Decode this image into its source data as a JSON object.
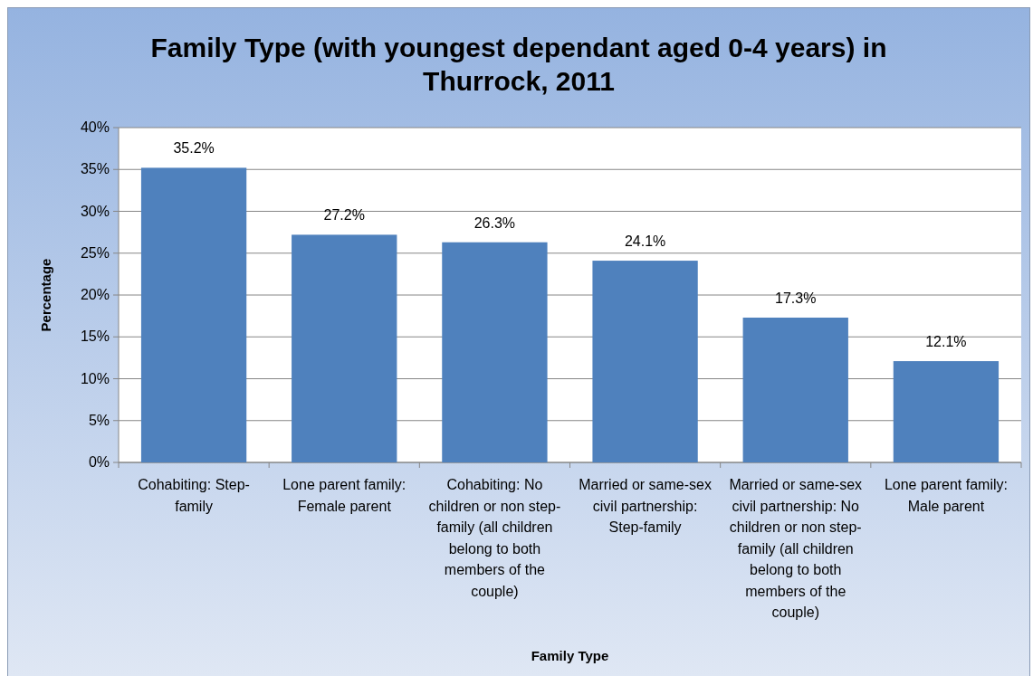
{
  "chart_data": {
    "type": "bar",
    "title": "Family Type (with youngest dependant aged 0-4 years) in Thurrock, 2011",
    "xlabel": "Family Type",
    "ylabel": "Percentage",
    "categories": [
      "Cohabiting: Step-family",
      "Lone parent family: Female parent",
      "Cohabiting: No children or non step-family (all children belong to both members of the couple)",
      "Married or same-sex civil partnership: Step-family",
      "Married or same-sex civil partnership: No children or non step-family (all children belong to both members of the couple)",
      "Lone parent family: Male parent"
    ],
    "values": [
      35.2,
      27.2,
      26.3,
      24.1,
      17.3,
      12.1
    ],
    "value_labels": [
      "35.2%",
      "27.2%",
      "26.3%",
      "24.1%",
      "17.3%",
      "12.1%"
    ],
    "color": "#4f81bd",
    "ylim": [
      0,
      40
    ],
    "yticks": [
      {
        "value": 0,
        "label": "0%"
      },
      {
        "value": 5,
        "label": "5%"
      },
      {
        "value": 10,
        "label": "10%"
      },
      {
        "value": 15,
        "label": "15%"
      },
      {
        "value": 20,
        "label": "20%"
      },
      {
        "value": 25,
        "label": "25%"
      },
      {
        "value": 30,
        "label": "30%"
      },
      {
        "value": 35,
        "label": "35%"
      },
      {
        "value": 40,
        "label": "40%"
      }
    ],
    "grid": "y"
  }
}
